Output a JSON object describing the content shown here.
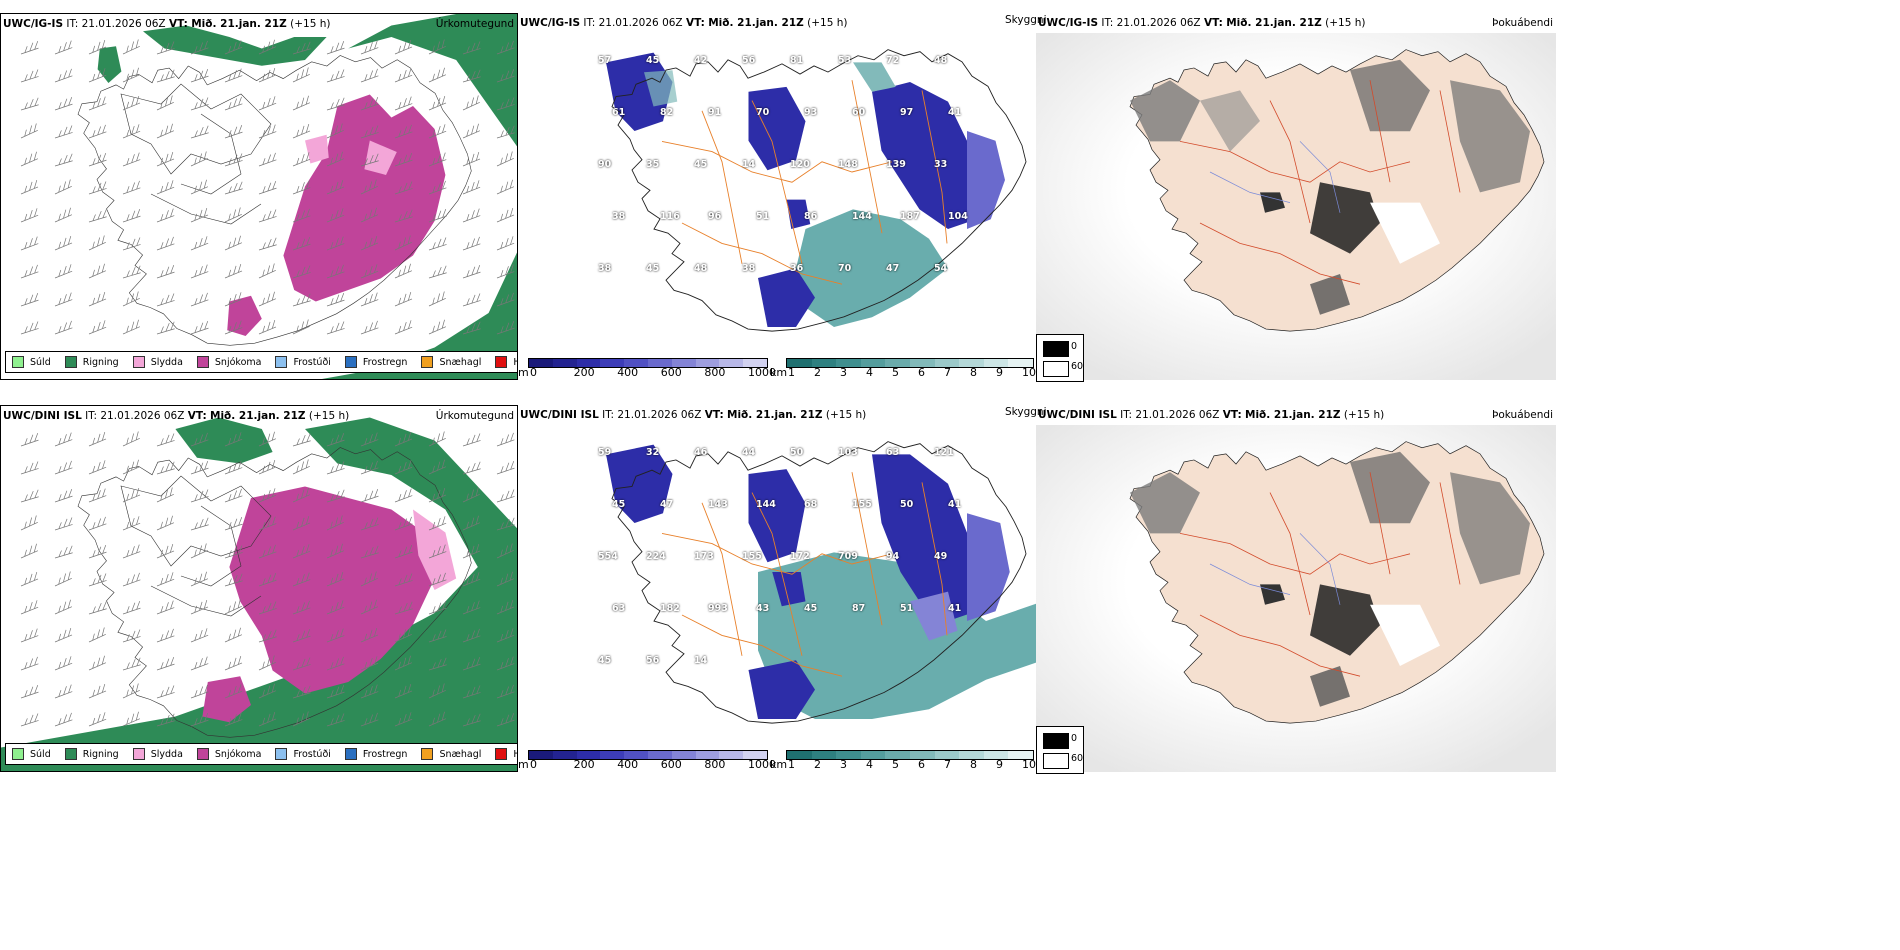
{
  "rows": [
    {
      "model": "UWC/IG-IS",
      "it_label": "IT:",
      "it_value": "21.01.2026 06Z",
      "vt_label": "VT:",
      "vt_value": "Mið. 21.jan. 21Z",
      "lead": "(+15 h)",
      "precip_title": "Úrkomutegund",
      "cloud_title": "Skyggni",
      "fog_title": "Þokuábendi",
      "cloud_numbers": [
        "57",
        "45",
        "42",
        "56",
        "81",
        "53",
        "72",
        "48",
        "61",
        "82",
        "91",
        "70",
        "93",
        "60",
        "97",
        "41",
        "90",
        "35",
        "45",
        "14",
        "120",
        "148",
        "139",
        "33",
        "38",
        "116",
        "96",
        "51",
        "86",
        "144",
        "187",
        "104",
        "38",
        "45",
        "48",
        "38",
        "36",
        "70",
        "47",
        "54"
      ]
    },
    {
      "model": "UWC/DINI ISL",
      "it_label": "IT:",
      "it_value": "21.01.2026 06Z",
      "vt_label": "VT:",
      "vt_value": "Mið. 21.jan. 21Z",
      "lead": "(+15 h)",
      "precip_title": "Úrkomutegund",
      "cloud_title": "Skyggni",
      "fog_title": "Þokuábendi",
      "cloud_numbers": [
        "59",
        "32",
        "46",
        "44",
        "50",
        "103",
        "63",
        "121",
        "45",
        "47",
        "143",
        "144",
        "68",
        "155",
        "50",
        "41",
        "554",
        "224",
        "173",
        "155",
        "172",
        "709",
        "94",
        "49",
        "63",
        "182",
        "993",
        "43",
        "45",
        "87",
        "51",
        "41",
        "45",
        "56",
        "14"
      ]
    }
  ],
  "precip_legend": [
    {
      "label": "Súld",
      "color": "#8ff08f"
    },
    {
      "label": "Rigning",
      "color": "#2e8b57"
    },
    {
      "label": "Slydda",
      "color": "#f3a6d8"
    },
    {
      "label": "Snjókoma",
      "color": "#c0449a"
    },
    {
      "label": "Frostúði",
      "color": "#8cc0ef"
    },
    {
      "label": "Frostregn",
      "color": "#2a6fc0"
    },
    {
      "label": "Snæhagl",
      "color": "#f0a020"
    },
    {
      "label": "Haglél",
      "color": "#e01010"
    }
  ],
  "cloud_base_bar": {
    "unit": "m",
    "ticks": [
      "0",
      "200",
      "400",
      "600",
      "800",
      "1000"
    ],
    "colors": [
      "#1a1a7a",
      "#232391",
      "#2d2da8",
      "#3d3db8",
      "#5151c3",
      "#6a6acd",
      "#8484d6",
      "#9e9edf",
      "#b8b8e8",
      "#d2d2f0"
    ]
  },
  "visibility_bar": {
    "unit": "km",
    "ticks": [
      "1",
      "2",
      "3",
      "4",
      "5",
      "6",
      "7",
      "8",
      "9",
      "10"
    ],
    "colors": [
      "#1f7070",
      "#2e8080",
      "#3f8f8f",
      "#549d9d",
      "#6aabab",
      "#82baba",
      "#9bc9c9",
      "#b4d8d8",
      "#cde6e6",
      "#e6f3f3"
    ]
  },
  "fog_key": {
    "top": "0",
    "bottom": "60"
  }
}
